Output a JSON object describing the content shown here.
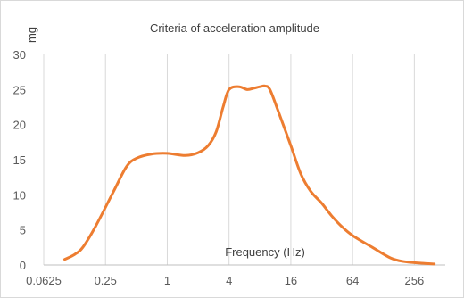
{
  "chart_data": {
    "type": "line",
    "title": "Criteria of acceleration amplitude",
    "xlabel": "Frequency (Hz)",
    "ylabel": "mg",
    "x_scale": "log2",
    "xlim": [
      0.0625,
      512
    ],
    "ylim": [
      0,
      30
    ],
    "x_ticks": [
      0.0625,
      0.25,
      1,
      4,
      16,
      64,
      256
    ],
    "x_tick_labels": [
      "0.0625",
      "0.25",
      "1",
      "4",
      "16",
      "64",
      "256"
    ],
    "y_ticks": [
      0,
      5,
      10,
      15,
      20,
      25,
      30
    ],
    "y_tick_labels": [
      "0",
      "5",
      "10",
      "15",
      "20",
      "25",
      "30"
    ],
    "grid": "vertical",
    "series": [
      {
        "color": "#ed7d31",
        "x": [
          0.1,
          0.125,
          0.15,
          0.2,
          0.3,
          0.4,
          0.5,
          0.7,
          1.0,
          1.5,
          2.0,
          2.5,
          3.0,
          3.5,
          4.0,
          5.0,
          6.0,
          7.0,
          8.0,
          9.0,
          10.0,
          12.0,
          16.0,
          20.0,
          25.0,
          32.0,
          40.0,
          50.0,
          64.0,
          100.0,
          150.0,
          200.0,
          300.0,
          400.0
        ],
        "y": [
          0.8,
          1.5,
          2.5,
          5.5,
          10.5,
          14.0,
          15.2,
          15.8,
          15.9,
          15.6,
          16.0,
          17.0,
          19.0,
          22.5,
          25.0,
          25.4,
          25.0,
          25.2,
          25.4,
          25.5,
          25.0,
          22.0,
          17.0,
          13.0,
          10.5,
          8.8,
          7.0,
          5.5,
          4.2,
          2.5,
          1.0,
          0.5,
          0.25,
          0.15
        ]
      }
    ]
  }
}
